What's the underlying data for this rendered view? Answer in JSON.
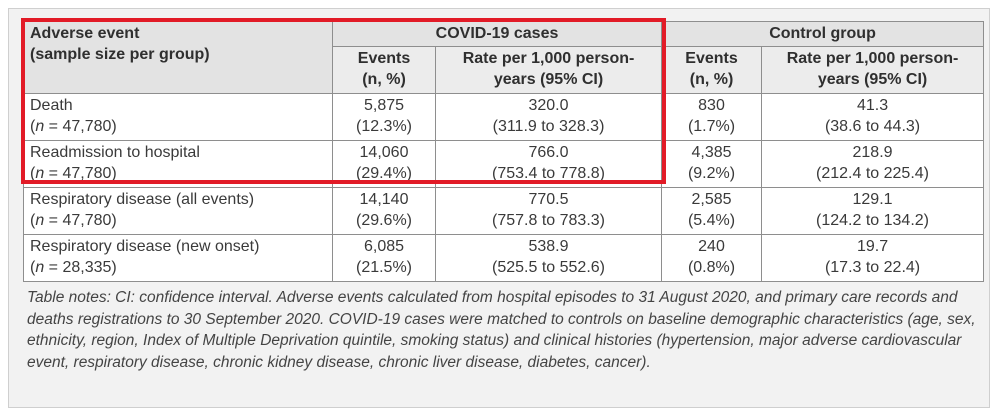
{
  "table": {
    "header": {
      "adverse_event_line1": "Adverse event",
      "adverse_event_line2": "(sample size per group)",
      "covid_group": "COVID-19 cases",
      "control_group": "Control group",
      "events_line1": "Events",
      "events_line2": "(n, %)",
      "rate_line1": "Rate per 1,000 person-",
      "rate_line2": "years (95% CI)"
    },
    "rows": [
      {
        "event": "Death",
        "n_prefix": "n",
        "n_value": " = 47,780)",
        "covid_events": "5,875",
        "covid_pct": "(12.3%)",
        "covid_rate": "320.0",
        "covid_ci": "(311.9 to 328.3)",
        "control_events": "830",
        "control_pct": "(1.7%)",
        "control_rate": "41.3",
        "control_ci": "(38.6 to 44.3)"
      },
      {
        "event": "Readmission to hospital",
        "n_prefix": "n",
        "n_value": " = 47,780)",
        "covid_events": "14,060",
        "covid_pct": "(29.4%)",
        "covid_rate": "766.0",
        "covid_ci": "(753.4 to 778.8)",
        "control_events": "4,385",
        "control_pct": "(9.2%)",
        "control_rate": "218.9",
        "control_ci": "(212.4 to 225.4)"
      },
      {
        "event": "Respiratory disease (all events)",
        "n_prefix": "n",
        "n_value": " = 47,780)",
        "covid_events": "14,140",
        "covid_pct": "(29.6%)",
        "covid_rate": "770.5",
        "covid_ci": "(757.8 to 783.3)",
        "control_events": "2,585",
        "control_pct": "(5.4%)",
        "control_rate": "129.1",
        "control_ci": "(124.2 to 134.2)"
      },
      {
        "event": "Respiratory disease (new onset)",
        "n_prefix": "n",
        "n_value": " = 28,335)",
        "covid_events": "6,085",
        "covid_pct": "(21.5%)",
        "covid_rate": "538.9",
        "covid_ci": "(525.5 to 552.6)",
        "control_events": "240",
        "control_pct": "(0.8%)",
        "control_rate": "19.7",
        "control_ci": "(17.3 to 22.4)"
      }
    ]
  },
  "notes": "Table notes: CI: confidence interval. Adverse events calculated from hospital episodes to 31 August 2020, and primary care records and deaths registrations to 30 September 2020. COVID-19 cases were matched to controls on baseline demographic characteristics (age, sex, ethnicity, region, Index of Multiple Deprivation quintile, smoking status) and clinical histories (hypertension, major adverse cardiovascular event, respiratory disease, chronic kidney disease, chronic liver disease, diabetes, cancer).",
  "colors": {
    "highlight": "#e21b27",
    "header_bg": "#e3e3e3",
    "frame_bg": "#f2f2f2"
  }
}
